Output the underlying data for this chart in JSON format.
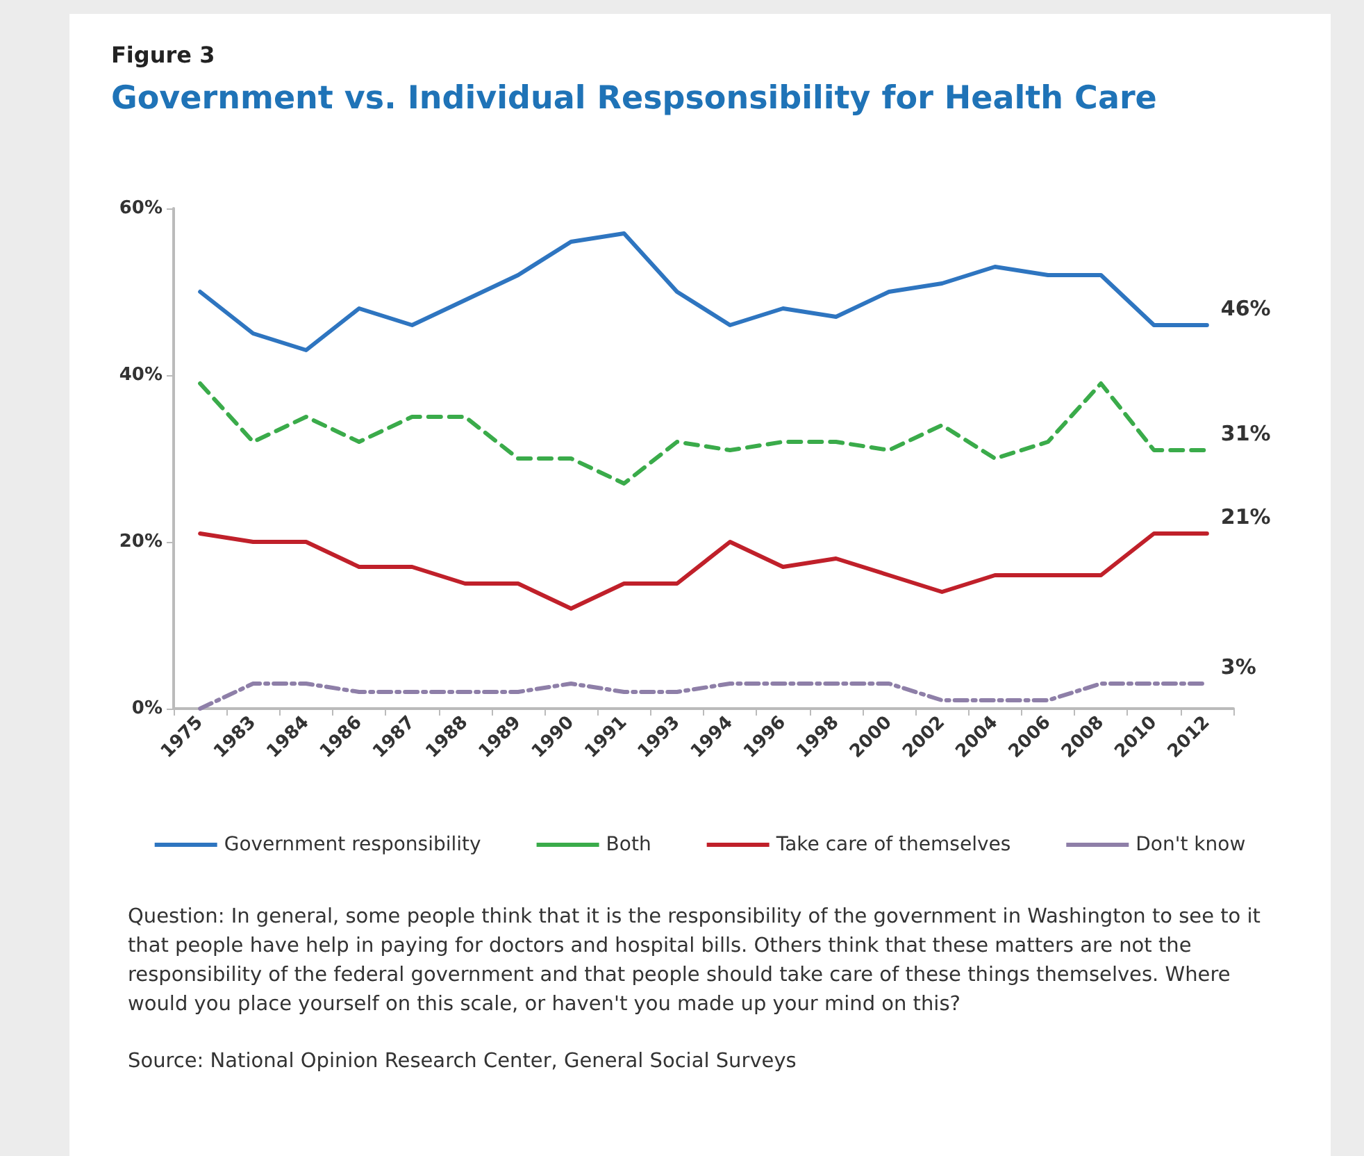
{
  "chart_data": {
    "type": "line",
    "subtitle": "Figure 3",
    "title": "Government vs. Individual Respsonsibility for Health Care",
    "categories": [
      "1975",
      "1983",
      "1984",
      "1986",
      "1987",
      "1988",
      "1989",
      "1990",
      "1991",
      "1993",
      "1994",
      "1996",
      "1998",
      "2000",
      "2002",
      "2004",
      "2006",
      "2008",
      "2010",
      "2012"
    ],
    "series": [
      {
        "name": "Government responsibility",
        "color": "#2e75c0",
        "line_style": "solid",
        "values": [
          50,
          45,
          43,
          48,
          46,
          49,
          52,
          56,
          57,
          50,
          46,
          48,
          47,
          50,
          51,
          53,
          52,
          52,
          46,
          46
        ]
      },
      {
        "name": "Both",
        "color": "#3aab4a",
        "line_style": "dashed",
        "values": [
          39,
          32,
          35,
          32,
          35,
          35,
          30,
          30,
          27,
          32,
          31,
          32,
          32,
          31,
          34,
          30,
          32,
          39,
          31,
          31
        ]
      },
      {
        "name": "Take care of themselves",
        "color": "#c0202a",
        "line_style": "solid",
        "values": [
          21,
          20,
          20,
          17,
          17,
          15,
          15,
          12,
          15,
          15,
          20,
          17,
          18,
          16,
          14,
          16,
          16,
          16,
          21,
          21
        ]
      },
      {
        "name": "Don't know",
        "color": "#8e7fa8",
        "line_style": "dashdot",
        "values": [
          0,
          3,
          3,
          2,
          2,
          2,
          2,
          3,
          2,
          2,
          3,
          3,
          3,
          3,
          1,
          1,
          1,
          3,
          3,
          3
        ]
      }
    ],
    "ylim": [
      0,
      60
    ],
    "yticks": [
      {
        "value": 0,
        "label": "0%"
      },
      {
        "value": 20,
        "label": "20%"
      },
      {
        "value": 40,
        "label": "40%"
      },
      {
        "value": 60,
        "label": "60%"
      }
    ],
    "grid": false,
    "legend": "bottom",
    "marker": "none",
    "annotations": [
      {
        "text": "46%",
        "x": "2012",
        "y": 46
      },
      {
        "text": "31%",
        "x": "2012",
        "y": 31
      },
      {
        "text": "21%",
        "x": "2012",
        "y": 21
      },
      {
        "text": "3%",
        "x": "2012",
        "y": 3
      },
      "Question: In general, some people think that it is the responsibility of the government in Washington to see to it that people have help in paying for doctors and hospital bills.  Others think that these matters are not the responsibility of the federal government and that people should take care of these things themselves. Where would you place yourself on this scale, or haven't you made up your mind on this?",
      "Source: National Opinion Research Center, General Social Surveys"
    ]
  }
}
